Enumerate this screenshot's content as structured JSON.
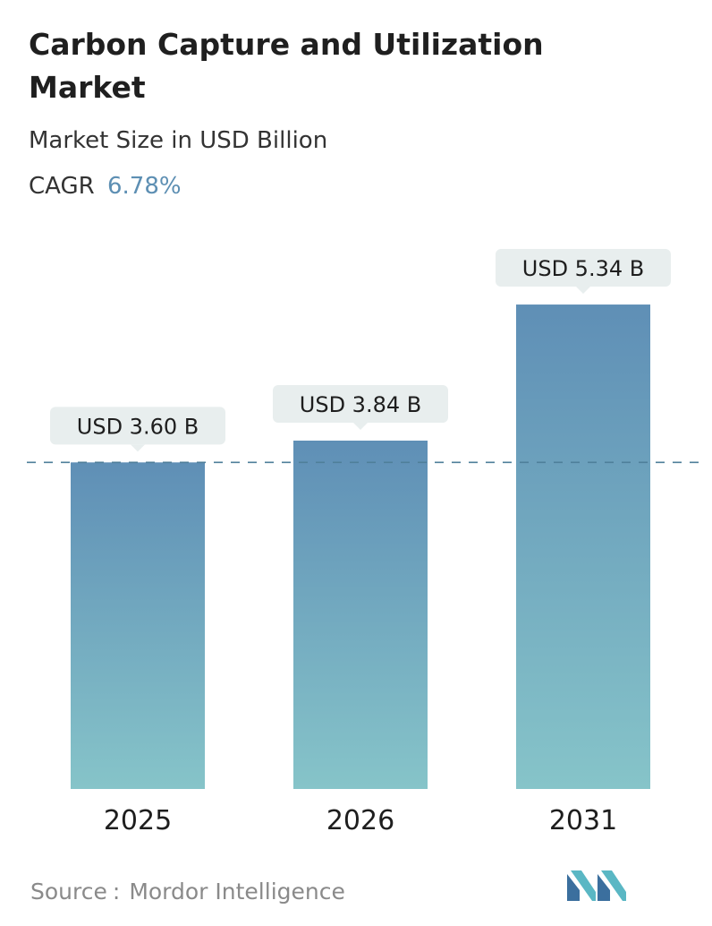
{
  "header": {
    "title": "Carbon Capture and Utilization Market",
    "subtitle": "Market Size in USD Billion",
    "cagr_label": "CAGR",
    "cagr_value": "6.78%"
  },
  "chart_data": {
    "type": "bar",
    "title": "Carbon Capture and Utilization Market",
    "subtitle": "Market Size in USD Billion",
    "categories": [
      "2025",
      "2026",
      "2031"
    ],
    "values": [
      3.6,
      3.84,
      5.34
    ],
    "data_labels": [
      "USD 3.60 B",
      "USD 3.84 B",
      "USD 5.34 B"
    ],
    "unit": "USD Billion",
    "reference_line": 3.6,
    "grid": false,
    "legend": "none"
  },
  "footer": {
    "source_label": "Source",
    "source_sep": ":",
    "source_name": "Mordor Intelligence"
  },
  "colors": {
    "bar_top": "#5f8fb6",
    "bar_bottom": "#86c4c9",
    "label_bg": "#e8eeee",
    "dashed_line": "#4f7f9a",
    "cagr_accent": "#5d8fb3",
    "logo_dark": "#3b6f9e",
    "logo_light": "#5ab7c4"
  },
  "icons": {
    "logo": "mordor-intelligence-logo"
  }
}
